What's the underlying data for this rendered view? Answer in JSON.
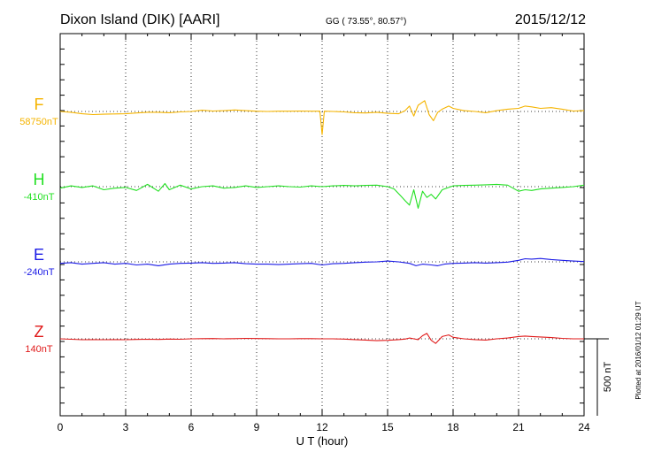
{
  "header": {
    "station": "Dixon Island (DIK)  [AARI]",
    "coords": "GG ( 73.55°,  80.57°)",
    "date": "2015/12/12"
  },
  "footer": {
    "xlabel": "U T (hour)",
    "scale_label": "500 nT",
    "plotted": "Plotted at 2016/01/12 01:29 UT"
  },
  "chart_data": {
    "type": "line",
    "x_range": [
      0,
      24
    ],
    "x_unit": "UT hour",
    "x_ticks": [
      "0",
      "3",
      "6",
      "9",
      "12",
      "15",
      "18",
      "21",
      "24"
    ],
    "scale_bar_nT": 500,
    "grid": true,
    "series": [
      {
        "name": "F",
        "baseline": "58750nT",
        "color": "#f5b400",
        "points": [
          [
            0,
            0
          ],
          [
            0.5,
            -5
          ],
          [
            1,
            -15
          ],
          [
            1.5,
            -20
          ],
          [
            2,
            -18
          ],
          [
            2.5,
            -16
          ],
          [
            3,
            -15
          ],
          [
            3.5,
            -10
          ],
          [
            4,
            -5
          ],
          [
            4.5,
            -5
          ],
          [
            5,
            -8
          ],
          [
            5.5,
            -3
          ],
          [
            6,
            0
          ],
          [
            6.5,
            8
          ],
          [
            7,
            3
          ],
          [
            7.5,
            5
          ],
          [
            8,
            10
          ],
          [
            8.5,
            5
          ],
          [
            9,
            2
          ],
          [
            9.5,
            0
          ],
          [
            10,
            2
          ],
          [
            10.5,
            2
          ],
          [
            11,
            3
          ],
          [
            11.5,
            2
          ],
          [
            11.9,
            2
          ],
          [
            12,
            -150
          ],
          [
            12.1,
            2
          ],
          [
            12.5,
            0
          ],
          [
            13,
            -3
          ],
          [
            13.5,
            -8
          ],
          [
            14,
            -10
          ],
          [
            14.5,
            -5
          ],
          [
            15,
            -12
          ],
          [
            15.5,
            -15
          ],
          [
            15.8,
            5
          ],
          [
            16,
            35
          ],
          [
            16.2,
            -30
          ],
          [
            16.4,
            40
          ],
          [
            16.7,
            70
          ],
          [
            16.9,
            -20
          ],
          [
            17.1,
            -60
          ],
          [
            17.3,
            -5
          ],
          [
            17.5,
            15
          ],
          [
            17.8,
            35
          ],
          [
            18,
            20
          ],
          [
            18.5,
            5
          ],
          [
            19,
            0
          ],
          [
            19.5,
            -8
          ],
          [
            20,
            5
          ],
          [
            20.5,
            15
          ],
          [
            21,
            20
          ],
          [
            21.3,
            35
          ],
          [
            21.6,
            30
          ],
          [
            22,
            20
          ],
          [
            22.5,
            25
          ],
          [
            23,
            15
          ],
          [
            23.5,
            3
          ],
          [
            24,
            5
          ]
        ]
      },
      {
        "name": "H",
        "baseline": "-410nT",
        "color": "#22e022",
        "points": [
          [
            0,
            -10
          ],
          [
            0.5,
            5
          ],
          [
            1,
            -5
          ],
          [
            1.5,
            5
          ],
          [
            2,
            -20
          ],
          [
            2.5,
            -10
          ],
          [
            3,
            -5
          ],
          [
            3.5,
            -25
          ],
          [
            4,
            15
          ],
          [
            4.5,
            -30
          ],
          [
            4.8,
            20
          ],
          [
            5,
            -20
          ],
          [
            5.5,
            10
          ],
          [
            6,
            -15
          ],
          [
            6.5,
            0
          ],
          [
            7,
            5
          ],
          [
            7.5,
            -10
          ],
          [
            8,
            -5
          ],
          [
            8.5,
            5
          ],
          [
            9,
            -5
          ],
          [
            9.5,
            0
          ],
          [
            10,
            5
          ],
          [
            10.5,
            0
          ],
          [
            11,
            -3
          ],
          [
            11.5,
            5
          ],
          [
            12,
            0
          ],
          [
            12.5,
            5
          ],
          [
            13,
            8
          ],
          [
            13.5,
            5
          ],
          [
            14,
            8
          ],
          [
            14.5,
            10
          ],
          [
            15,
            0
          ],
          [
            15.3,
            -15
          ],
          [
            15.6,
            -60
          ],
          [
            15.8,
            -90
          ],
          [
            16,
            -120
          ],
          [
            16.2,
            -20
          ],
          [
            16.4,
            -140
          ],
          [
            16.6,
            -30
          ],
          [
            16.8,
            -70
          ],
          [
            17,
            -50
          ],
          [
            17.2,
            -80
          ],
          [
            17.5,
            -20
          ],
          [
            17.8,
            -5
          ],
          [
            18,
            5
          ],
          [
            18.5,
            8
          ],
          [
            19,
            10
          ],
          [
            19.5,
            12
          ],
          [
            20,
            15
          ],
          [
            20.5,
            10
          ],
          [
            21,
            -30
          ],
          [
            21.3,
            -20
          ],
          [
            21.6,
            -25
          ],
          [
            22,
            -15
          ],
          [
            22.5,
            -10
          ],
          [
            23,
            -5
          ],
          [
            23.5,
            0
          ],
          [
            24,
            10
          ]
        ]
      },
      {
        "name": "E",
        "baseline": "-240nT",
        "color": "#1a1ae6",
        "points": [
          [
            0,
            -10
          ],
          [
            0.5,
            -5
          ],
          [
            1,
            -15
          ],
          [
            1.5,
            -10
          ],
          [
            2,
            -5
          ],
          [
            2.5,
            -15
          ],
          [
            3,
            -10
          ],
          [
            3.5,
            -20
          ],
          [
            4,
            -15
          ],
          [
            4.5,
            -25
          ],
          [
            5,
            -15
          ],
          [
            5.5,
            -10
          ],
          [
            6,
            -8
          ],
          [
            6.5,
            -5
          ],
          [
            7,
            -10
          ],
          [
            7.5,
            -8
          ],
          [
            8,
            -5
          ],
          [
            8.5,
            -12
          ],
          [
            9,
            -15
          ],
          [
            9.5,
            -15
          ],
          [
            10,
            -18
          ],
          [
            10.5,
            -15
          ],
          [
            11,
            -12
          ],
          [
            11.5,
            -10
          ],
          [
            12,
            -20
          ],
          [
            12.5,
            -12
          ],
          [
            13,
            -10
          ],
          [
            13.5,
            -5
          ],
          [
            14,
            -2
          ],
          [
            14.5,
            0
          ],
          [
            15,
            5
          ],
          [
            15.5,
            0
          ],
          [
            16,
            -10
          ],
          [
            16.3,
            -25
          ],
          [
            16.6,
            -15
          ],
          [
            17,
            -20
          ],
          [
            17.3,
            -25
          ],
          [
            17.6,
            -15
          ],
          [
            18,
            -10
          ],
          [
            18.5,
            -8
          ],
          [
            19,
            -5
          ],
          [
            19.5,
            -8
          ],
          [
            20,
            -5
          ],
          [
            20.5,
            -2
          ],
          [
            21,
            10
          ],
          [
            21.3,
            20
          ],
          [
            21.6,
            18
          ],
          [
            22,
            22
          ],
          [
            22.5,
            15
          ],
          [
            23,
            10
          ],
          [
            23.5,
            5
          ],
          [
            24,
            2
          ]
        ]
      },
      {
        "name": "Z",
        "baseline": "140nT",
        "color": "#e01a1a",
        "points": [
          [
            0,
            0
          ],
          [
            0.5,
            -3
          ],
          [
            1,
            -6
          ],
          [
            1.5,
            -5
          ],
          [
            2,
            -6
          ],
          [
            2.5,
            -5
          ],
          [
            3,
            -6
          ],
          [
            3.5,
            -4
          ],
          [
            4,
            -3
          ],
          [
            4.5,
            -4
          ],
          [
            5,
            -2
          ],
          [
            5.5,
            -3
          ],
          [
            6,
            0
          ],
          [
            6.5,
            1
          ],
          [
            7,
            2
          ],
          [
            7.5,
            0
          ],
          [
            8,
            1
          ],
          [
            8.5,
            3
          ],
          [
            9,
            2
          ],
          [
            9.5,
            1
          ],
          [
            10,
            0
          ],
          [
            10.5,
            0
          ],
          [
            11,
            1
          ],
          [
            11.5,
            1
          ],
          [
            12,
            0
          ],
          [
            12.5,
            0
          ],
          [
            13,
            -2
          ],
          [
            13.5,
            -5
          ],
          [
            14,
            -8
          ],
          [
            14.5,
            -12
          ],
          [
            15,
            -10
          ],
          [
            15.5,
            -5
          ],
          [
            15.8,
            -2
          ],
          [
            16,
            5
          ],
          [
            16.2,
            0
          ],
          [
            16.4,
            -5
          ],
          [
            16.6,
            20
          ],
          [
            16.8,
            35
          ],
          [
            17,
            -10
          ],
          [
            17.2,
            -30
          ],
          [
            17.5,
            15
          ],
          [
            17.8,
            25
          ],
          [
            18,
            10
          ],
          [
            18.5,
            0
          ],
          [
            19,
            -5
          ],
          [
            19.5,
            -8
          ],
          [
            20,
            0
          ],
          [
            20.5,
            5
          ],
          [
            21,
            15
          ],
          [
            21.3,
            18
          ],
          [
            21.6,
            15
          ],
          [
            22,
            12
          ],
          [
            22.5,
            8
          ],
          [
            23,
            3
          ],
          [
            23.5,
            0
          ],
          [
            24,
            0
          ]
        ]
      }
    ]
  }
}
